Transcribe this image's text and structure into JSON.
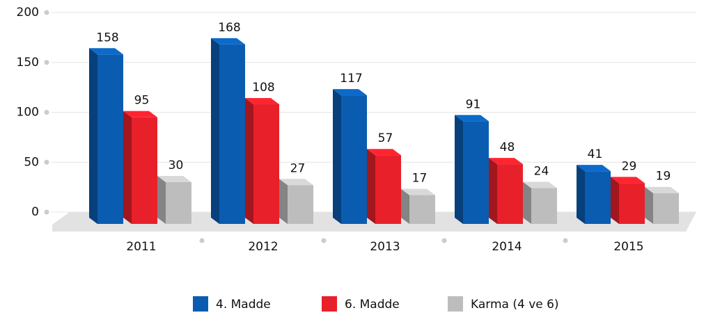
{
  "chart_data": {
    "type": "bar3d",
    "categories": [
      "2011",
      "2012",
      "2013",
      "2014",
      "2015"
    ],
    "series": [
      {
        "name": "4. Madde",
        "color": "#0a5cb0",
        "values": [
          158,
          168,
          117,
          91,
          41
        ]
      },
      {
        "name": "6. Madde",
        "color": "#e8202a",
        "values": [
          95,
          108,
          57,
          48,
          29
        ]
      },
      {
        "name": "Karma (4 ve 6)",
        "color": "#bdbdbd",
        "values": [
          30,
          27,
          17,
          24,
          19
        ]
      }
    ],
    "ylim": [
      0,
      200
    ],
    "yticks": [
      0,
      50,
      100,
      150,
      200
    ],
    "legend": "bottom"
  }
}
